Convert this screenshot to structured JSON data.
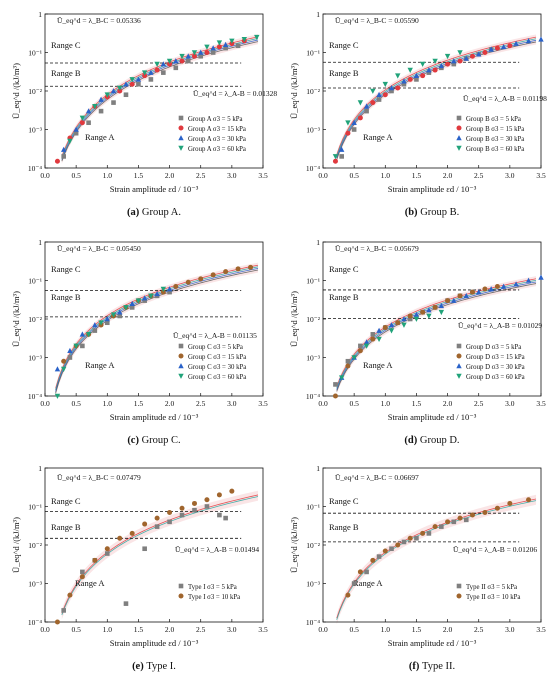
{
  "figure_title": "",
  "chart_data": [
    {
      "type": "scatter",
      "panel": "a",
      "caption_letter": "(a)",
      "caption_text": "Group A.",
      "xlabel": "Strain amplitude εd / 10⁻³",
      "ylabel": "Ū_eq^d /(kJ/m³)",
      "xlim": [
        0,
        3.5
      ],
      "ylim_log10": [
        -4,
        0
      ],
      "x_ticks": [
        "0.0",
        "0.5",
        "1.0",
        "1.5",
        "2.0",
        "2.5",
        "3.0",
        "3.5"
      ],
      "y_ticks": [
        "10⁻⁴",
        "10⁻³",
        "10⁻²",
        "10⁻¹",
        "1"
      ],
      "log_scale_y": true,
      "grid": false,
      "legend_position": "right",
      "region_labels": [
        "Range C",
        "Range B",
        "Range A"
      ],
      "threshold_BC": 0.05336,
      "threshold_AB": 0.01328,
      "annotation_BC": "Ū_eq^d = λ_B-C = 0.05336",
      "annotation_AB": "Ū_eq^d = λ_A-B = 0.01328",
      "series": [
        {
          "name": "Group A σ3 = 5 kPa",
          "color": "#7f7f7f",
          "marker": "square",
          "x": [
            0.3,
            0.5,
            0.7,
            0.9,
            1.1,
            1.3,
            1.5,
            1.7,
            1.9,
            2.1,
            2.3,
            2.5,
            2.7,
            2.9,
            3.1
          ],
          "y": [
            0.0002,
            0.0008,
            0.0015,
            0.003,
            0.005,
            0.008,
            0.015,
            0.02,
            0.03,
            0.04,
            0.06,
            0.08,
            0.1,
            0.13,
            0.15
          ]
        },
        {
          "name": "Group A σ3 = 15 kPa",
          "color": "#e0393e",
          "marker": "circle",
          "x": [
            0.2,
            0.4,
            0.6,
            0.8,
            1.0,
            1.2,
            1.4,
            1.6,
            1.8,
            2.0,
            2.2,
            2.4,
            2.6,
            2.8,
            3.0,
            3.2
          ],
          "y": [
            0.00015,
            0.0006,
            0.0015,
            0.004,
            0.007,
            0.01,
            0.015,
            0.025,
            0.035,
            0.05,
            0.06,
            0.08,
            0.1,
            0.14,
            0.17,
            0.2
          ]
        },
        {
          "name": "Group A σ3 = 30 kPa",
          "color": "#2a62c9",
          "marker": "triangle-up",
          "x": [
            0.3,
            0.5,
            0.7,
            0.9,
            1.1,
            1.3,
            1.5,
            1.7,
            1.9,
            2.1,
            2.3,
            2.5,
            2.7,
            2.9
          ],
          "y": [
            0.0003,
            0.001,
            0.003,
            0.006,
            0.01,
            0.015,
            0.02,
            0.03,
            0.05,
            0.06,
            0.08,
            0.1,
            0.13,
            0.16
          ]
        },
        {
          "name": "Group A σ3 = 60 kPa",
          "color": "#21a37a",
          "marker": "triangle-down",
          "x": [
            0.4,
            0.6,
            0.8,
            1.0,
            1.2,
            1.4,
            1.6,
            1.8,
            2.0,
            2.2,
            2.4,
            2.6,
            2.8,
            3.0,
            3.2,
            3.4
          ],
          "y": [
            0.0005,
            0.002,
            0.004,
            0.008,
            0.012,
            0.02,
            0.03,
            0.05,
            0.06,
            0.08,
            0.1,
            0.14,
            0.18,
            0.2,
            0.22,
            0.25
          ]
        }
      ]
    },
    {
      "type": "scatter",
      "panel": "b",
      "caption_letter": "(b)",
      "caption_text": "Group B.",
      "xlabel": "Strain amplitude εd / 10⁻³",
      "ylabel": "Ū_eq^d /(kJ/m³)",
      "xlim": [
        0,
        3.5
      ],
      "ylim_log10": [
        -4,
        0
      ],
      "x_ticks": [
        "0.0",
        "0.5",
        "1.0",
        "1.5",
        "2.0",
        "2.5",
        "3.0",
        "3.5"
      ],
      "y_ticks": [
        "10⁻⁴",
        "10⁻³",
        "10⁻²",
        "10⁻¹",
        "1"
      ],
      "log_scale_y": true,
      "grid": false,
      "legend_position": "right",
      "region_labels": [
        "Range C",
        "Range B",
        "Range A"
      ],
      "threshold_BC": 0.0559,
      "threshold_AB": 0.01198,
      "annotation_BC": "Ū_eq^d = λ_B-C = 0.05590",
      "annotation_AB": "Ū_eq^d = λ_A-B = 0.01198",
      "series": [
        {
          "name": "Group B σ3 = 5 kPa",
          "color": "#7f7f7f",
          "marker": "square",
          "x": [
            0.3,
            0.5,
            0.7,
            0.9,
            1.1,
            1.3,
            1.5,
            1.7,
            1.9,
            2.1,
            2.3,
            2.5,
            2.7
          ],
          "y": [
            0.0002,
            0.001,
            0.003,
            0.006,
            0.01,
            0.015,
            0.02,
            0.03,
            0.04,
            0.05,
            0.07,
            0.09,
            0.12
          ]
        },
        {
          "name": "Group B σ3 = 15 kPa",
          "color": "#e0393e",
          "marker": "circle",
          "x": [
            0.2,
            0.4,
            0.6,
            0.8,
            1.0,
            1.2,
            1.4,
            1.6,
            1.8,
            2.0,
            2.2,
            2.4,
            2.6,
            2.8,
            3.0
          ],
          "y": [
            0.00015,
            0.0008,
            0.002,
            0.005,
            0.008,
            0.012,
            0.02,
            0.025,
            0.035,
            0.05,
            0.06,
            0.08,
            0.1,
            0.13,
            0.15
          ]
        },
        {
          "name": "Group B σ3 = 30 kPa",
          "color": "#2a62c9",
          "marker": "triangle-up",
          "x": [
            0.3,
            0.5,
            0.7,
            0.9,
            1.1,
            1.3,
            1.5,
            1.7,
            1.9,
            2.1,
            2.3,
            2.5,
            2.7,
            2.9,
            3.1,
            3.3,
            3.5
          ],
          "y": [
            0.0003,
            0.0015,
            0.004,
            0.008,
            0.012,
            0.018,
            0.025,
            0.035,
            0.045,
            0.06,
            0.07,
            0.09,
            0.12,
            0.14,
            0.17,
            0.2,
            0.22
          ]
        },
        {
          "name": "Group B σ3 = 60 kPa",
          "color": "#21a37a",
          "marker": "triangle-down",
          "x": [
            0.2,
            0.4,
            0.6,
            0.8,
            1.0,
            1.2,
            1.4,
            1.6,
            1.8,
            2.0,
            2.2
          ],
          "y": [
            0.0002,
            0.0015,
            0.005,
            0.01,
            0.015,
            0.025,
            0.035,
            0.05,
            0.06,
            0.08,
            0.1
          ]
        }
      ]
    },
    {
      "type": "scatter",
      "panel": "c",
      "caption_letter": "(c)",
      "caption_text": "Group C.",
      "xlabel": "Strain amplitude εd / 10⁻³",
      "ylabel": "Ū_eq^d /(kJ/m³)",
      "xlim": [
        0,
        3.5
      ],
      "ylim_log10": [
        -4,
        0
      ],
      "x_ticks": [
        "0.0",
        "0.5",
        "1.0",
        "1.5",
        "2.0",
        "2.5",
        "3.0",
        "3.5"
      ],
      "y_ticks": [
        "10⁻⁴",
        "10⁻³",
        "10⁻²",
        "10⁻¹",
        "1"
      ],
      "log_scale_y": true,
      "grid": false,
      "legend_position": "right",
      "region_labels": [
        "Range C",
        "Range B",
        "Range A"
      ],
      "threshold_BC": 0.0545,
      "threshold_AB": 0.01135,
      "annotation_BC": "Ū_eq^d = λ_B-C = 0.05450",
      "annotation_AB": "Ū_eq^d = λ_A-B = 0.01135",
      "series": [
        {
          "name": "Group C σ3 = 5 kPa",
          "color": "#7f7f7f",
          "marker": "square",
          "x": [
            0.4,
            0.6,
            0.8,
            1.0,
            1.2,
            1.4,
            1.6,
            1.8,
            2.0
          ],
          "y": [
            0.001,
            0.002,
            0.005,
            0.008,
            0.012,
            0.02,
            0.03,
            0.04,
            0.05
          ]
        },
        {
          "name": "Group C σ3 = 15 kPa",
          "color": "#a0652d",
          "marker": "circle",
          "x": [
            0.3,
            0.5,
            0.7,
            0.9,
            1.1,
            1.3,
            1.5,
            1.7,
            1.9,
            2.1,
            2.3,
            2.5,
            2.7,
            2.9,
            3.1,
            3.3
          ],
          "y": [
            0.0008,
            0.002,
            0.004,
            0.007,
            0.012,
            0.02,
            0.03,
            0.04,
            0.05,
            0.07,
            0.09,
            0.11,
            0.14,
            0.17,
            0.2,
            0.22
          ]
        },
        {
          "name": "Group C σ3 = 30 kPa",
          "color": "#2a62c9",
          "marker": "triangle-up",
          "x": [
            0.2,
            0.4,
            0.6,
            0.8,
            1.0,
            1.2,
            1.4,
            1.6,
            1.8,
            2.0
          ],
          "y": [
            0.0005,
            0.0015,
            0.004,
            0.007,
            0.01,
            0.015,
            0.025,
            0.035,
            0.045,
            0.06
          ]
        },
        {
          "name": "Group C σ3 = 60 kPa",
          "color": "#21a37a",
          "marker": "triangle-down",
          "x": [
            0.2,
            0.3,
            0.5,
            0.7,
            0.9,
            1.1,
            1.3,
            1.5,
            1.7,
            1.9
          ],
          "y": [
            0.0001,
            0.0005,
            0.002,
            0.004,
            0.008,
            0.013,
            0.02,
            0.03,
            0.04,
            0.06
          ]
        }
      ]
    },
    {
      "type": "scatter",
      "panel": "d",
      "caption_letter": "(d)",
      "caption_text": "Group D.",
      "xlabel": "Strain amplitude εd / 10⁻³",
      "ylabel": "Ū_eq^d /(kJ/m³)",
      "xlim": [
        0,
        3.5
      ],
      "ylim_log10": [
        -4,
        0
      ],
      "x_ticks": [
        "0.0",
        "0.5",
        "1.0",
        "1.5",
        "2.0",
        "2.5",
        "3.0",
        "3.5"
      ],
      "y_ticks": [
        "10⁻⁴",
        "10⁻³",
        "10⁻²",
        "10⁻¹",
        "1"
      ],
      "log_scale_y": true,
      "grid": false,
      "legend_position": "right",
      "region_labels": [
        "Range C",
        "Range B",
        "Range A"
      ],
      "threshold_BC": 0.05679,
      "threshold_AB": 0.01029,
      "annotation_BC": "Ū_eq^d = λ_B-C = 0.05679",
      "annotation_AB": "Ū_eq^d = λ_A-B = 0.01029",
      "series": [
        {
          "name": "Group D σ3 = 5 kPa",
          "color": "#7f7f7f",
          "marker": "square",
          "x": [
            0.2,
            0.4,
            0.6,
            0.8,
            1.0,
            1.2,
            1.4,
            1.6,
            1.8,
            2.0,
            2.2,
            2.4
          ],
          "y": [
            0.0002,
            0.0008,
            0.002,
            0.004,
            0.006,
            0.008,
            0.01,
            0.015,
            0.02,
            0.03,
            0.04,
            0.05
          ]
        },
        {
          "name": "Group D σ3 = 15 kPa",
          "color": "#a0652d",
          "marker": "circle",
          "x": [
            0.2,
            0.4,
            0.6,
            0.8,
            1.0,
            1.2,
            1.4,
            1.6,
            1.8,
            2.0,
            2.2,
            2.4,
            2.6,
            2.8
          ],
          "y": [
            0.0001,
            0.0006,
            0.0015,
            0.003,
            0.006,
            0.008,
            0.012,
            0.015,
            0.02,
            0.03,
            0.04,
            0.05,
            0.06,
            0.07
          ]
        },
        {
          "name": "Group D σ3 = 30 kPa",
          "color": "#2a62c9",
          "marker": "triangle-up",
          "x": [
            0.3,
            0.5,
            0.7,
            0.9,
            1.1,
            1.3,
            1.5,
            1.7,
            1.9,
            2.1,
            2.3,
            2.5,
            2.7,
            2.9,
            3.1,
            3.3,
            3.5
          ],
          "y": [
            0.0003,
            0.001,
            0.0025,
            0.005,
            0.007,
            0.01,
            0.013,
            0.017,
            0.022,
            0.03,
            0.04,
            0.05,
            0.06,
            0.07,
            0.08,
            0.1,
            0.12
          ]
        },
        {
          "name": "Group D σ3 = 60 kPa",
          "color": "#21a37a",
          "marker": "triangle-down",
          "x": [
            0.3,
            0.5,
            0.7,
            0.9,
            1.1,
            1.3,
            1.5,
            1.7,
            1.9
          ],
          "y": [
            0.0003,
            0.001,
            0.002,
            0.003,
            0.005,
            0.007,
            0.01,
            0.012,
            0.015
          ]
        }
      ]
    },
    {
      "type": "scatter",
      "panel": "e",
      "caption_letter": "(e)",
      "caption_text": "Type I.",
      "xlabel": "Strain amplitude εd / 10⁻³",
      "ylabel": "Ū_eq^d /(kJ/m³)",
      "xlim": [
        0,
        3.5
      ],
      "ylim_log10": [
        -4,
        0
      ],
      "x_ticks": [
        "0.0",
        "0.5",
        "1.0",
        "1.5",
        "2.0",
        "2.5",
        "3.0",
        "3.5"
      ],
      "y_ticks": [
        "10⁻⁴",
        "10⁻³",
        "10⁻²",
        "10⁻¹",
        "1"
      ],
      "log_scale_y": true,
      "grid": false,
      "legend_position": "right",
      "region_labels": [
        "Range C",
        "Range B",
        "Range A"
      ],
      "threshold_BC": 0.07479,
      "threshold_AB": 0.01494,
      "annotation_BC": "Ū_eq^d = λ_B-C = 0.07479",
      "annotation_AB": "Ū_eq^d = λ_A-B = 0.01494",
      "series": [
        {
          "name": "Type I σ3 = 5 kPa",
          "color": "#7f7f7f",
          "marker": "square",
          "x": [
            0.3,
            0.6,
            0.8,
            1.0,
            1.3,
            1.6,
            1.8,
            2.0,
            2.2,
            2.4,
            2.6,
            2.8,
            2.9
          ],
          "y": [
            0.0002,
            0.002,
            0.004,
            0.006,
            0.0003,
            0.008,
            0.03,
            0.04,
            0.06,
            0.08,
            0.1,
            0.06,
            0.05
          ]
        },
        {
          "name": "Type I σ3 = 10 kPa",
          "color": "#a0652d",
          "marker": "circle",
          "x": [
            0.2,
            0.4,
            0.6,
            0.8,
            1.0,
            1.2,
            1.4,
            1.6,
            1.8,
            2.0,
            2.2,
            2.4,
            2.6,
            2.8,
            3.0
          ],
          "y": [
            0.0001,
            0.0005,
            0.0015,
            0.004,
            0.008,
            0.015,
            0.02,
            0.035,
            0.05,
            0.07,
            0.09,
            0.12,
            0.15,
            0.2,
            0.25
          ]
        }
      ]
    },
    {
      "type": "scatter",
      "panel": "f",
      "caption_letter": "(f)",
      "caption_text": "Type II.",
      "xlabel": "Strain amplitude εd / 10⁻³",
      "ylabel": "Ū_eq^d /(kJ/m³)",
      "xlim": [
        0,
        3.5
      ],
      "ylim_log10": [
        -4,
        0
      ],
      "x_ticks": [
        "0.0",
        "0.5",
        "1.0",
        "1.5",
        "2.0",
        "2.5",
        "3.0",
        "3.5"
      ],
      "y_ticks": [
        "10⁻⁴",
        "10⁻³",
        "10⁻²",
        "10⁻¹",
        "1"
      ],
      "log_scale_y": true,
      "grid": false,
      "legend_position": "right",
      "region_labels": [
        "Range C",
        "Range B",
        "Range A"
      ],
      "threshold_BC": 0.06697,
      "threshold_AB": 0.01206,
      "annotation_BC": "Ū_eq^d = λ_B-C = 0.06697",
      "annotation_AB": "Ū_eq^d = λ_A-B = 0.01206",
      "series": [
        {
          "name": "Type II σ3 = 5 kPa",
          "color": "#7f7f7f",
          "marker": "square",
          "x": [
            0.5,
            0.7,
            0.9,
            1.1,
            1.3,
            1.5,
            1.7,
            1.9,
            2.1,
            2.3
          ],
          "y": [
            0.001,
            0.002,
            0.005,
            0.008,
            0.012,
            0.015,
            0.02,
            0.03,
            0.04,
            0.045
          ]
        },
        {
          "name": "Type II σ3 = 10 kPa",
          "color": "#a0652d",
          "marker": "circle",
          "x": [
            0.4,
            0.6,
            0.8,
            1.0,
            1.2,
            1.4,
            1.6,
            1.8,
            2.0,
            2.2,
            2.4,
            2.6,
            2.8,
            3.0,
            3.3
          ],
          "y": [
            0.0005,
            0.002,
            0.004,
            0.007,
            0.01,
            0.015,
            0.02,
            0.03,
            0.04,
            0.05,
            0.06,
            0.07,
            0.09,
            0.12,
            0.15
          ]
        }
      ]
    }
  ]
}
